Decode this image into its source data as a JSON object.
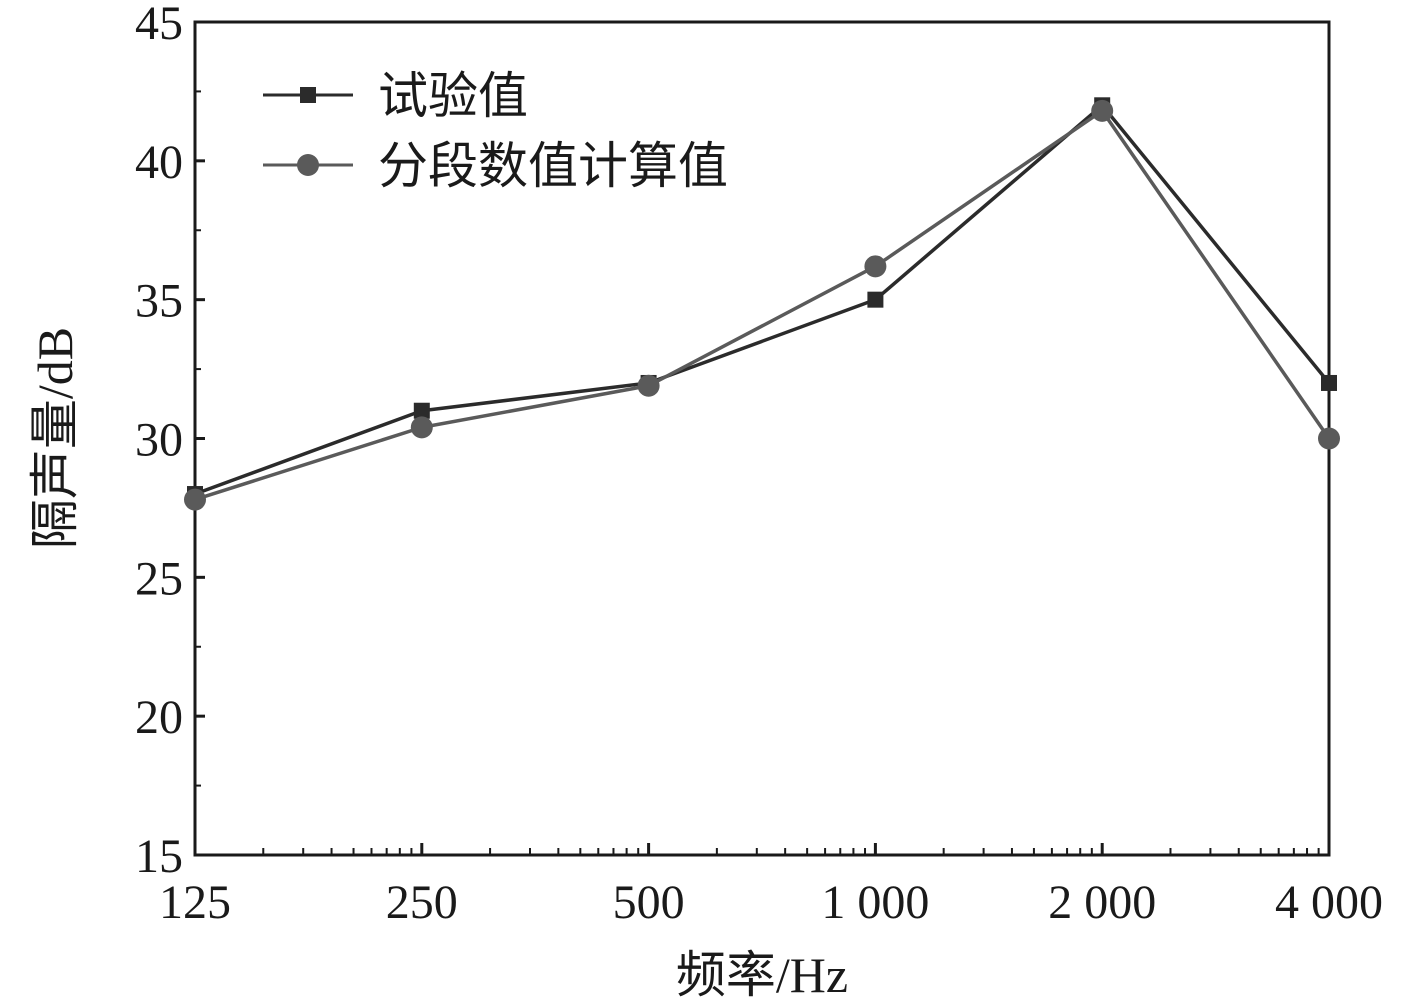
{
  "chart_data": {
    "type": "line",
    "title": "",
    "xlabel": "频率/Hz",
    "ylabel": "隔声量/dB",
    "categories": [
      "125",
      "250",
      "500",
      "1 000",
      "2 000",
      "4 000"
    ],
    "ylim": [
      15,
      45
    ],
    "yticks": [
      15,
      20,
      25,
      30,
      35,
      40,
      45
    ],
    "ytick_labels": [
      "15",
      "20",
      "25",
      "30",
      "35",
      "40",
      "45"
    ],
    "grid": false,
    "legend_position": "top-left",
    "series": [
      {
        "name": "试验值",
        "marker": "square",
        "color": "#2b2b2b",
        "values": [
          28.0,
          31.0,
          32.0,
          35.0,
          42.0,
          32.0
        ]
      },
      {
        "name": "分段数值计算值",
        "marker": "circle",
        "color": "#5a5a5a",
        "values": [
          27.8,
          30.4,
          31.9,
          36.2,
          41.8,
          30.0
        ]
      }
    ]
  }
}
